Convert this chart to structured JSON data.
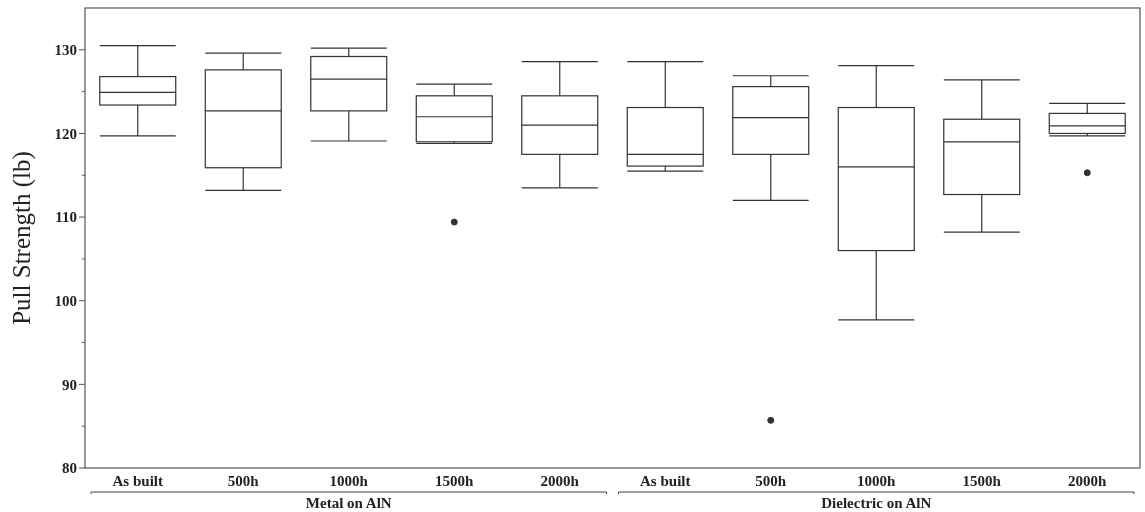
{
  "chart_data": {
    "type": "box",
    "ylabel": "Pull Strength (lb)",
    "categories": [
      "As built",
      "500h",
      "1000h",
      "1500h",
      "2000h",
      "As built",
      "500h",
      "1000h",
      "1500h",
      "2000h"
    ],
    "boxes": [
      {
        "low": 119.7,
        "q1": 123.4,
        "median": 124.9,
        "q3": 126.8,
        "high": 130.5
      },
      {
        "low": 113.2,
        "q1": 115.9,
        "median": 122.7,
        "q3": 127.6,
        "high": 129.6
      },
      {
        "low": 119.1,
        "q1": 122.7,
        "median": 126.5,
        "q3": 129.2,
        "high": 130.2
      },
      {
        "low": 118.8,
        "q1": 119.0,
        "median": 122.0,
        "q3": 124.5,
        "high": 125.9,
        "outliers": [
          109.4
        ]
      },
      {
        "low": 113.5,
        "q1": 117.5,
        "median": 121.0,
        "q3": 124.5,
        "high": 128.6
      },
      {
        "low": 115.5,
        "q1": 116.1,
        "median": 117.5,
        "q3": 123.1,
        "high": 128.6
      },
      {
        "low": 112.0,
        "q1": 117.5,
        "median": 121.9,
        "q3": 125.6,
        "high": 126.9,
        "outliers": [
          85.7
        ]
      },
      {
        "low": 97.7,
        "q1": 106.0,
        "median": 116.0,
        "q3": 123.1,
        "high": 128.1
      },
      {
        "low": 108.2,
        "q1": 112.7,
        "median": 119.0,
        "q3": 121.7,
        "high": 126.4
      },
      {
        "low": 119.7,
        "q1": 120.0,
        "median": 120.9,
        "q3": 122.4,
        "high": 123.6,
        "outliers": [
          115.3
        ]
      }
    ],
    "ylim": [
      80,
      135
    ],
    "yticks": [
      80,
      {
        "value": 85,
        "label": null
      },
      90,
      {
        "value": 95,
        "label": null
      },
      100,
      {
        "value": 105,
        "label": null
      },
      110,
      {
        "value": 115,
        "label": null
      },
      120,
      {
        "value": 125,
        "label": null
      },
      130
    ],
    "annotations": [
      "Metal on AlN",
      "Dielectric on AlN"
    ]
  }
}
